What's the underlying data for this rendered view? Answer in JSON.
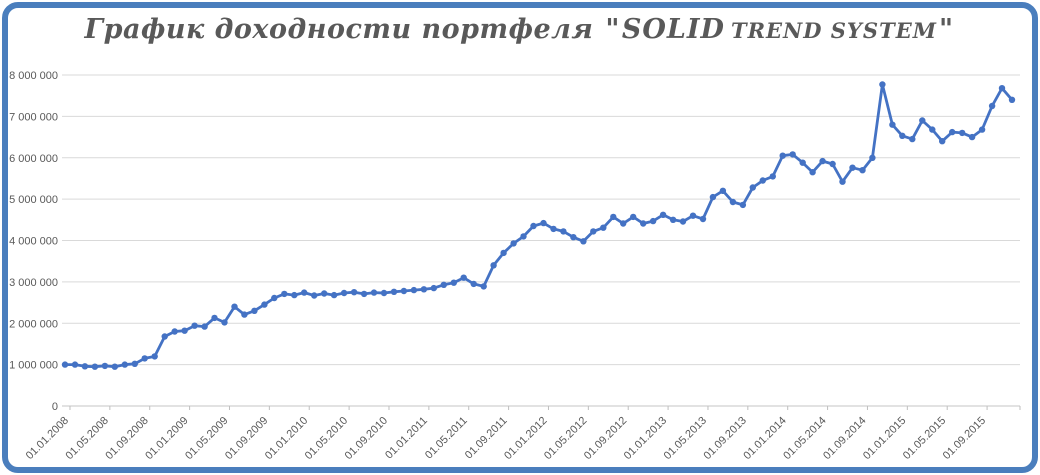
{
  "frame": {
    "border_color": "#4A7EBD",
    "background_color": "#FFFFFF"
  },
  "title": {
    "prefix": "График доходности портфеля",
    "quote_open": "\"",
    "brand_primary": "SOLID",
    "brand_secondary": "TREND SYSTEM",
    "quote_close": "\"",
    "color": "#595959"
  },
  "chart_data": {
    "type": "line",
    "title": "График доходности портфеля \"SOLID TREND SYSTEM\"",
    "x_start": "01.01.2008",
    "x_interval": "monthly",
    "x_tick_every": 4,
    "x_tick_labels": [
      "01.01.2008",
      "01.05.2008",
      "01.09.2008",
      "01.01.2009",
      "01.05.2009",
      "01.09.2009",
      "01.01.2010",
      "01.05.2010",
      "01.09.2010",
      "01.01.2011",
      "01.05.2011",
      "01.09.2011",
      "01.01.2012",
      "01.05.2012",
      "01.09.2012",
      "01.01.2013",
      "01.05.2013",
      "01.09.2013",
      "01.01.2014",
      "01.05.2014",
      "01.09.2014",
      "01.01.2015",
      "01.05.2015",
      "01.09.2015"
    ],
    "ylim": [
      0,
      8000000
    ],
    "y_tick_step": 1000000,
    "y_tick_labels": [
      "0",
      "1 000 000",
      "2 000 000",
      "3 000 000",
      "4 000 000",
      "5 000 000",
      "6 000 000",
      "7 000 000",
      "8 000 000"
    ],
    "grid": "horizontal",
    "legend": "none",
    "line_color": "#4472C4",
    "marker": "circle",
    "gridline_color": "#D9D9D9",
    "axis_label_color": "#595959",
    "values": [
      1000000,
      1000000,
      960000,
      950000,
      970000,
      950000,
      1000000,
      1020000,
      1150000,
      1200000,
      1680000,
      1800000,
      1820000,
      1940000,
      1920000,
      2130000,
      2020000,
      2400000,
      2210000,
      2300000,
      2450000,
      2610000,
      2710000,
      2680000,
      2740000,
      2670000,
      2720000,
      2680000,
      2730000,
      2750000,
      2710000,
      2740000,
      2730000,
      2760000,
      2780000,
      2800000,
      2820000,
      2850000,
      2930000,
      2980000,
      3100000,
      2950000,
      2890000,
      3400000,
      3700000,
      3930000,
      4100000,
      4350000,
      4420000,
      4280000,
      4220000,
      4080000,
      3980000,
      4220000,
      4310000,
      4570000,
      4410000,
      4570000,
      4410000,
      4470000,
      4620000,
      4500000,
      4460000,
      4600000,
      4520000,
      5050000,
      5200000,
      4930000,
      4860000,
      5280000,
      5450000,
      5550000,
      6050000,
      6080000,
      5880000,
      5650000,
      5920000,
      5850000,
      5420000,
      5760000,
      5700000,
      6000000,
      7770000,
      6800000,
      6530000,
      6450000,
      6900000,
      6680000,
      6400000,
      6620000,
      6600000,
      6500000,
      6680000,
      7250000,
      7680000,
      7400000
    ]
  }
}
